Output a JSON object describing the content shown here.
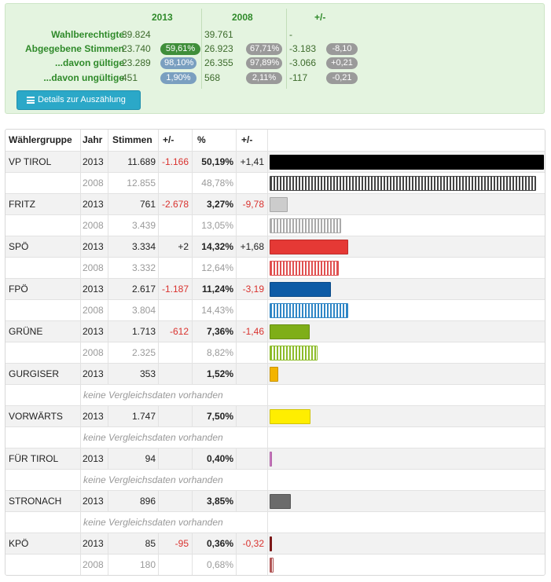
{
  "summary": {
    "years": [
      "2013",
      "2008"
    ],
    "diff_header": "+/-",
    "rows": [
      {
        "label": "Wahlberechtigte",
        "v2013": "39.824",
        "p2013": "",
        "v2008": "39.761",
        "p2008": "",
        "d": "-",
        "pd": ""
      },
      {
        "label": "Abgegebene Stimmen",
        "v2013": "23.740",
        "p2013": "59,61%",
        "v2008": "26.923",
        "p2008": "67,71%",
        "d": "-3.183",
        "pd": "-8,10"
      },
      {
        "label": "...davon gültige",
        "v2013": "23.289",
        "p2013": "98,10%",
        "v2008": "26.355",
        "p2008": "97,89%",
        "d": "-3.066",
        "pd": "+0,21"
      },
      {
        "label": "...davon ungültige",
        "v2013": "451",
        "p2013": "1,90%",
        "v2008": "568",
        "p2008": "2,11%",
        "d": "-117",
        "pd": "-0,21"
      }
    ],
    "details_button": "Details zur Auszählung",
    "details_icon": "list-icon"
  },
  "table": {
    "headers": {
      "group": "Wählergruppe",
      "year": "Jahr",
      "votes": "Stimmen",
      "diff": "+/-",
      "pct": "%",
      "pdiff": "+/-"
    },
    "no_data_text": "keine Vergleichsdaten vorhanden",
    "parties": [
      {
        "name": "VP TIROL",
        "color": "#000000",
        "stripe": "#444444",
        "r2013": {
          "year": "2013",
          "votes": "11.689",
          "diff": "-1.166",
          "pct": "50,19%",
          "pdiff": "+1,41",
          "share": 50.19
        },
        "r2008": {
          "year": "2008",
          "votes": "12.855",
          "pct": "48,78%",
          "share": 48.78
        }
      },
      {
        "name": "FRITZ",
        "color": "#cccccc",
        "stripe": "#aaaaaa",
        "r2013": {
          "year": "2013",
          "votes": "761",
          "diff": "-2.678",
          "pct": "3,27%",
          "pdiff": "-9,78",
          "share": 3.27
        },
        "r2008": {
          "year": "2008",
          "votes": "3.439",
          "pct": "13,05%",
          "share": 13.05
        }
      },
      {
        "name": "SPÖ",
        "color": "#e53935",
        "stripe": "#e05050",
        "r2013": {
          "year": "2013",
          "votes": "3.334",
          "diff": "+2",
          "pct": "14,32%",
          "pdiff": "+1,68",
          "share": 14.32
        },
        "r2008": {
          "year": "2008",
          "votes": "3.332",
          "pct": "12,64%",
          "share": 12.64
        }
      },
      {
        "name": "FPÖ",
        "color": "#0d5ba6",
        "stripe": "#2f86c6",
        "r2013": {
          "year": "2013",
          "votes": "2.617",
          "diff": "-1.187",
          "pct": "11,24%",
          "pdiff": "-3,19",
          "share": 11.24
        },
        "r2008": {
          "year": "2008",
          "votes": "3.804",
          "pct": "14,43%",
          "share": 14.43
        }
      },
      {
        "name": "GRÜNE",
        "color": "#7fae18",
        "stripe": "#8dbb2a",
        "r2013": {
          "year": "2013",
          "votes": "1.713",
          "diff": "-612",
          "pct": "7,36%",
          "pdiff": "-1,46",
          "share": 7.36
        },
        "r2008": {
          "year": "2008",
          "votes": "2.325",
          "pct": "8,82%",
          "share": 8.82
        }
      },
      {
        "name": "GURGISER",
        "color": "#f3b400",
        "stripe": "",
        "r2013": {
          "year": "2013",
          "votes": "353",
          "diff": "",
          "pct": "1,52%",
          "pdiff": "",
          "share": 1.52
        },
        "r2008": null
      },
      {
        "name": "VORWÄRTS",
        "color": "#ffee00",
        "stripe": "",
        "r2013": {
          "year": "2013",
          "votes": "1.747",
          "diff": "",
          "pct": "7,50%",
          "pdiff": "",
          "share": 7.5
        },
        "r2008": null
      },
      {
        "name": "FÜR TIROL",
        "color": "#d47ac8",
        "stripe": "",
        "r2013": {
          "year": "2013",
          "votes": "94",
          "diff": "",
          "pct": "0,40%",
          "pdiff": "",
          "share": 0.4
        },
        "r2008": null
      },
      {
        "name": "STRONACH",
        "color": "#6b6b6b",
        "stripe": "",
        "r2013": {
          "year": "2013",
          "votes": "896",
          "diff": "",
          "pct": "3,85%",
          "pdiff": "",
          "share": 3.85
        },
        "r2008": null
      },
      {
        "name": "KPÖ",
        "color": "#8b1a1a",
        "stripe": "#b05555",
        "r2013": {
          "year": "2013",
          "votes": "85",
          "diff": "-95",
          "pct": "0,36%",
          "pdiff": "-0,32",
          "share": 0.36
        },
        "r2008": {
          "year": "2008",
          "votes": "180",
          "pct": "0,68%",
          "share": 0.68
        }
      }
    ]
  }
}
